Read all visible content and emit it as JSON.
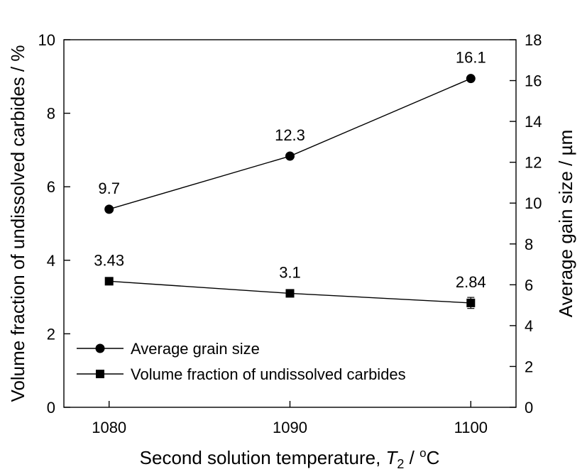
{
  "chart_data": {
    "type": "line",
    "x": [
      1080,
      1090,
      1100
    ],
    "x_tick_labels": [
      "1080",
      "1090",
      "1100"
    ],
    "xlim": [
      1077.5,
      1102.5
    ],
    "xlabel": {
      "prefix": "Second solution temperature, ",
      "symbol": "T",
      "subscript": "2",
      "slash": " / ",
      "degree": "o",
      "unit": "C"
    },
    "left_axis": {
      "label": "Volume fraction of undissolved carbides / %",
      "ylim": [
        0,
        10
      ],
      "ticks": [
        0,
        2,
        4,
        6,
        8,
        10
      ],
      "tick_labels": [
        "0",
        "2",
        "4",
        "6",
        "8",
        "10"
      ]
    },
    "right_axis": {
      "label": "Average gain size / µm",
      "ylim": [
        0,
        18
      ],
      "ticks": [
        0,
        2,
        4,
        6,
        8,
        10,
        12,
        14,
        16,
        18
      ],
      "tick_labels": [
        "0",
        "2",
        "4",
        "6",
        "8",
        "10",
        "12",
        "14",
        "16",
        "18"
      ]
    },
    "series": [
      {
        "name": "Average grain size",
        "axis": "right",
        "marker": "circle",
        "values": [
          9.7,
          12.3,
          16.1
        ],
        "data_labels": [
          "9.7",
          "12.3",
          "16.1"
        ]
      },
      {
        "name": "Volume fraction of undissolved carbides",
        "axis": "left",
        "marker": "square",
        "values": [
          3.43,
          3.1,
          2.84
        ],
        "errors": [
          0.04,
          0.05,
          0.15
        ],
        "data_labels": [
          "3.43",
          "3.1",
          "2.84"
        ]
      }
    ],
    "legend": "bottom-left",
    "grid": false,
    "color": "#000000"
  }
}
